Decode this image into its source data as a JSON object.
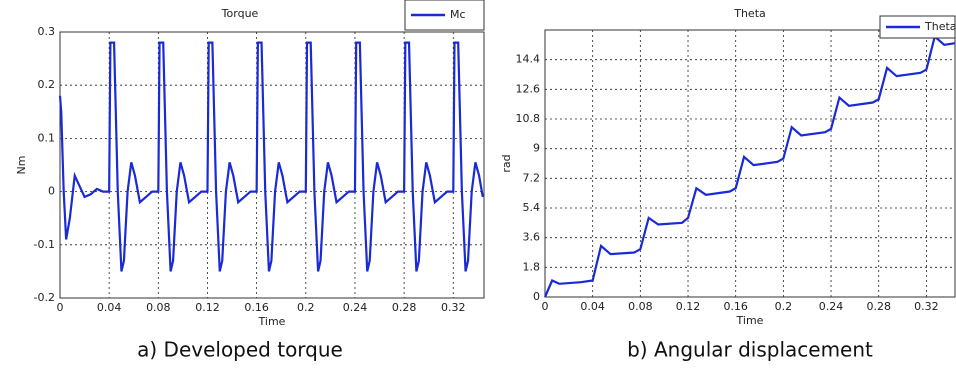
{
  "chart_data": [
    {
      "type": "line",
      "title": "Torque",
      "caption": "a) Developed torque",
      "xlabel": "Time",
      "ylabel": "Nm",
      "xlim": [
        0,
        0.345
      ],
      "ylim": [
        -0.2,
        0.3
      ],
      "xticks": [
        0,
        0.04,
        0.08,
        0.12,
        0.16,
        0.2,
        0.24,
        0.28,
        0.32
      ],
      "yticks": [
        -0.2,
        -0.1,
        0,
        0.1,
        0.2,
        0.3
      ],
      "grid": true,
      "series": [
        {
          "name": "Mc",
          "color": "#1a2ad6",
          "x": [
            0,
            0.001,
            0.003,
            0.005,
            0.008,
            0.012,
            0.016,
            0.02,
            0.025,
            0.03,
            0.035,
            0.04,
            0.041,
            0.044,
            0.047,
            0.05,
            0.052,
            0.055,
            0.058,
            0.061,
            0.065,
            0.07,
            0.075,
            0.08,
            0.081,
            0.084,
            0.087,
            0.09,
            0.092,
            0.095,
            0.098,
            0.101,
            0.105,
            0.11,
            0.115,
            0.12,
            0.121,
            0.124,
            0.127,
            0.13,
            0.132,
            0.135,
            0.138,
            0.141,
            0.145,
            0.15,
            0.155,
            0.16,
            0.161,
            0.164,
            0.167,
            0.17,
            0.172,
            0.175,
            0.178,
            0.181,
            0.185,
            0.19,
            0.195,
            0.2,
            0.201,
            0.204,
            0.207,
            0.21,
            0.212,
            0.215,
            0.218,
            0.221,
            0.225,
            0.23,
            0.235,
            0.24,
            0.241,
            0.244,
            0.247,
            0.25,
            0.252,
            0.255,
            0.258,
            0.261,
            0.265,
            0.27,
            0.275,
            0.28,
            0.281,
            0.284,
            0.287,
            0.29,
            0.292,
            0.295,
            0.298,
            0.301,
            0.305,
            0.31,
            0.315,
            0.32,
            0.321,
            0.324,
            0.327,
            0.33,
            0.332,
            0.335,
            0.338,
            0.341,
            0.344
          ],
          "values": [
            0.18,
            0.15,
            0.0,
            -0.09,
            -0.05,
            0.03,
            0.01,
            -0.01,
            -0.005,
            0.005,
            0.0,
            0,
            0.28,
            0.28,
            0,
            -0.15,
            -0.13,
            0,
            0.055,
            0.03,
            -0.02,
            -0.01,
            0,
            0,
            0.28,
            0.28,
            0,
            -0.15,
            -0.13,
            0,
            0.055,
            0.03,
            -0.02,
            -0.01,
            0,
            0,
            0.28,
            0.28,
            0,
            -0.15,
            -0.13,
            0,
            0.055,
            0.03,
            -0.02,
            -0.01,
            0,
            0,
            0.28,
            0.28,
            0,
            -0.15,
            -0.13,
            0,
            0.055,
            0.03,
            -0.02,
            -0.01,
            0,
            0,
            0.28,
            0.28,
            0,
            -0.15,
            -0.13,
            0,
            0.055,
            0.03,
            -0.02,
            -0.01,
            0,
            0,
            0.28,
            0.28,
            0,
            -0.15,
            -0.13,
            0,
            0.055,
            0.03,
            -0.02,
            -0.01,
            0,
            0,
            0.28,
            0.28,
            0,
            -0.15,
            -0.13,
            0,
            0.055,
            0.03,
            -0.02,
            -0.01,
            0,
            0,
            0.28,
            0.28,
            0,
            -0.15,
            -0.13,
            0,
            0.055,
            0.03,
            -0.01
          ]
        }
      ]
    },
    {
      "type": "line",
      "title": "Theta",
      "caption": "b) Angular displacement",
      "xlabel": "Time",
      "ylabel": "rad",
      "xlim": [
        0,
        0.344
      ],
      "ylim": [
        0,
        16.2
      ],
      "xticks": [
        0,
        0.04,
        0.08,
        0.12,
        0.16,
        0.2,
        0.24,
        0.28,
        0.32
      ],
      "yticks": [
        0,
        1.8,
        3.6,
        5.4,
        7.2,
        9,
        10.8,
        12.6,
        14.4
      ],
      "grid": true,
      "series": [
        {
          "name": "Theta",
          "color": "#1a2ad6",
          "x": [
            0,
            0.006,
            0.012,
            0.03,
            0.04,
            0.047,
            0.055,
            0.075,
            0.08,
            0.087,
            0.095,
            0.115,
            0.12,
            0.127,
            0.135,
            0.155,
            0.16,
            0.167,
            0.175,
            0.195,
            0.2,
            0.207,
            0.215,
            0.235,
            0.24,
            0.247,
            0.255,
            0.275,
            0.28,
            0.287,
            0.295,
            0.315,
            0.32,
            0.327,
            0.335,
            0.344
          ],
          "values": [
            0,
            1.0,
            0.8,
            0.9,
            1.0,
            3.1,
            2.6,
            2.7,
            2.9,
            4.8,
            4.4,
            4.5,
            4.8,
            6.6,
            6.2,
            6.4,
            6.6,
            8.5,
            8.0,
            8.2,
            8.4,
            10.3,
            9.8,
            10.0,
            10.2,
            12.1,
            11.6,
            11.8,
            12.0,
            13.9,
            13.4,
            13.6,
            13.8,
            15.8,
            15.3,
            15.4
          ]
        }
      ]
    }
  ]
}
